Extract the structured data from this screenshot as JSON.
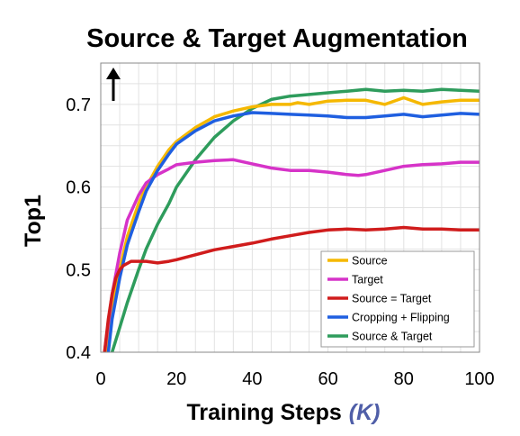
{
  "chart_data": {
    "type": "line",
    "title": "Source & Target Augmentation",
    "xlabel": "Training Steps",
    "xlabel_unit": "(K)",
    "ylabel": "Top1",
    "xlim": [
      0,
      100
    ],
    "ylim": [
      0.4,
      0.75
    ],
    "xticks": [
      "0",
      "20",
      "40",
      "60",
      "80",
      "100"
    ],
    "yticks": [
      "0.4",
      "0.5",
      "0.6",
      "0.7"
    ],
    "grid": true,
    "legend_position": "bottom-right",
    "direction_indicator": "up-arrow",
    "series": [
      {
        "name": "Source",
        "color": "#f5b800",
        "x": [
          1.5,
          3,
          5,
          7,
          10,
          12,
          15,
          18,
          20,
          25,
          30,
          35,
          40,
          45,
          50,
          52,
          55,
          60,
          65,
          70,
          75,
          80,
          85,
          90,
          95,
          100
        ],
        "y": [
          0.4,
          0.45,
          0.5,
          0.54,
          0.58,
          0.6,
          0.625,
          0.645,
          0.655,
          0.672,
          0.685,
          0.692,
          0.697,
          0.7,
          0.7,
          0.702,
          0.7,
          0.704,
          0.705,
          0.705,
          0.7,
          0.708,
          0.7,
          0.703,
          0.705,
          0.705
        ]
      },
      {
        "name": "Target",
        "color": "#d633c8",
        "x": [
          1,
          3,
          5,
          7,
          10,
          12,
          15,
          18,
          20,
          25,
          30,
          35,
          40,
          45,
          50,
          55,
          60,
          65,
          68,
          70,
          75,
          80,
          85,
          90,
          95,
          100
        ],
        "y": [
          0.4,
          0.47,
          0.52,
          0.56,
          0.59,
          0.605,
          0.615,
          0.622,
          0.627,
          0.63,
          0.632,
          0.633,
          0.628,
          0.623,
          0.62,
          0.62,
          0.618,
          0.615,
          0.614,
          0.615,
          0.62,
          0.625,
          0.627,
          0.628,
          0.63,
          0.63
        ]
      },
      {
        "name": "Source = Target",
        "color": "#d01c1c",
        "x": [
          1,
          2,
          3,
          4,
          5,
          6,
          8,
          10,
          12,
          15,
          18,
          20,
          25,
          30,
          35,
          40,
          45,
          50,
          55,
          60,
          65,
          70,
          75,
          80,
          85,
          90,
          95,
          100
        ],
        "y": [
          0.4,
          0.44,
          0.47,
          0.49,
          0.5,
          0.505,
          0.51,
          0.51,
          0.51,
          0.508,
          0.51,
          0.512,
          0.518,
          0.524,
          0.528,
          0.532,
          0.537,
          0.541,
          0.545,
          0.548,
          0.549,
          0.548,
          0.549,
          0.551,
          0.549,
          0.549,
          0.548,
          0.548
        ]
      },
      {
        "name": "Cropping + Flipping",
        "color": "#1f5fe0",
        "x": [
          2,
          3,
          5,
          7,
          10,
          12,
          15,
          18,
          20,
          25,
          30,
          35,
          40,
          45,
          50,
          55,
          60,
          65,
          70,
          75,
          80,
          85,
          90,
          95,
          100
        ],
        "y": [
          0.4,
          0.44,
          0.49,
          0.53,
          0.57,
          0.595,
          0.62,
          0.64,
          0.652,
          0.668,
          0.68,
          0.686,
          0.69,
          0.689,
          0.688,
          0.687,
          0.686,
          0.684,
          0.684,
          0.686,
          0.688,
          0.685,
          0.687,
          0.689,
          0.688
        ]
      },
      {
        "name": "Source & Target",
        "color": "#2e9c5c",
        "x": [
          3,
          5,
          7,
          10,
          12,
          15,
          18,
          20,
          25,
          30,
          35,
          40,
          45,
          50,
          55,
          60,
          65,
          70,
          75,
          80,
          85,
          90,
          95,
          100
        ],
        "y": [
          0.4,
          0.43,
          0.46,
          0.5,
          0.525,
          0.555,
          0.58,
          0.6,
          0.633,
          0.66,
          0.68,
          0.695,
          0.706,
          0.71,
          0.712,
          0.714,
          0.716,
          0.718,
          0.716,
          0.717,
          0.716,
          0.718,
          0.717,
          0.716
        ]
      }
    ]
  }
}
